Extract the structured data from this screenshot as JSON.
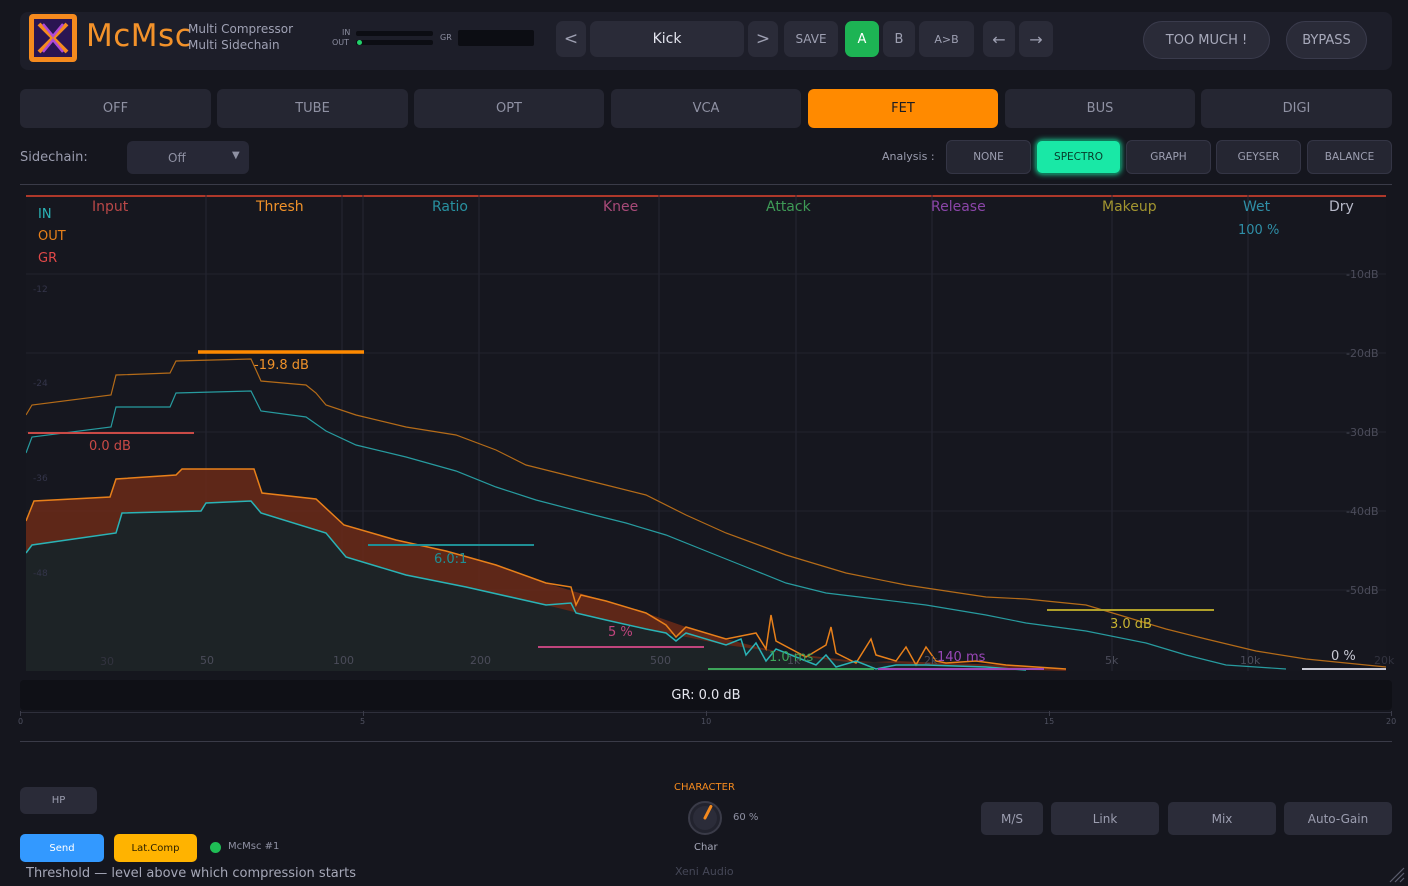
{
  "header": {
    "app_name": "McMsc",
    "subtitle_line1": "Multi Compressor",
    "subtitle_line2": "Multi Sidechain",
    "meter_in_label": "IN",
    "meter_out_label": "OUT",
    "meter_gr_label": "GR",
    "prev_label": "<",
    "preset_name": "Kick",
    "next_label": ">",
    "save_label": "SAVE",
    "a_label": "A",
    "b_label": "B",
    "ab_label": "A>B",
    "undo_label": "←",
    "redo_label": "→",
    "too_much_label": "TOO MUCH !",
    "bypass_label": "BYPASS"
  },
  "modes": {
    "items": [
      "OFF",
      "TUBE",
      "OPT",
      "VCA",
      "FET",
      "BUS",
      "DIGI"
    ],
    "active": "FET"
  },
  "sidechain": {
    "label": "Sidechain:",
    "value": "Off",
    "arrow": "▼"
  },
  "analysis": {
    "label": "Analysis :",
    "options": [
      "NONE",
      "SPECTRO",
      "GRAPH",
      "GEYSER",
      "BALANCE"
    ],
    "active": "SPECTRO"
  },
  "graph": {
    "params": {
      "input": "Input",
      "thresh": "Thresh",
      "ratio": "Ratio",
      "knee": "Knee",
      "attack": "Attack",
      "release": "Release",
      "makeup": "Makeup",
      "wet": "Wet",
      "dry": "Dry"
    },
    "legend": {
      "in": "IN",
      "out": "OUT",
      "gr": "GR"
    },
    "values": {
      "thresh": "-19.8 dB",
      "input": "0.0 dB",
      "ratio": "6.0:1",
      "knee": "5 %",
      "attack": "1.0 ms",
      "release": "140 ms",
      "makeup": "3.0 dB",
      "wet": "100 %",
      "dry": "0 %"
    },
    "db_labels": [
      "-10dB",
      "-20dB",
      "-30dB",
      "-40dB",
      "-50dB"
    ],
    "faint_db_labels": [
      "-12",
      "-24",
      "-36",
      "-48"
    ],
    "freq_labels": [
      "30",
      "50",
      "100",
      "200",
      "500",
      "1k",
      "2k",
      "5k",
      "10k",
      "20k"
    ]
  },
  "gr_readout": "GR: 0.0 dB",
  "scale_labels": [
    "0",
    "5",
    "10",
    "15",
    "20"
  ],
  "bottom": {
    "hp_label": "HP",
    "send_label": "Send",
    "latcomp_label": "Lat.Comp",
    "instance_label": "McMsc #1",
    "status_text": "Threshold — level above which compression starts",
    "character_title": "CHARACTER",
    "character_value": "60 %",
    "character_level": 0.6,
    "character_label": "Char",
    "brand": "Xeni Audio",
    "ms_label": "M/S",
    "link_label": "Link",
    "mix_label": "Mix",
    "autogain_label": "Auto-Gain"
  },
  "colors": {
    "accent": "#ff8a00",
    "in_trace": "#2ab3b6",
    "out_trace": "#e8801a",
    "gr_fill": "#6b2a18",
    "spectro_active": "#19e8a6",
    "a_active": "#1db454"
  }
}
